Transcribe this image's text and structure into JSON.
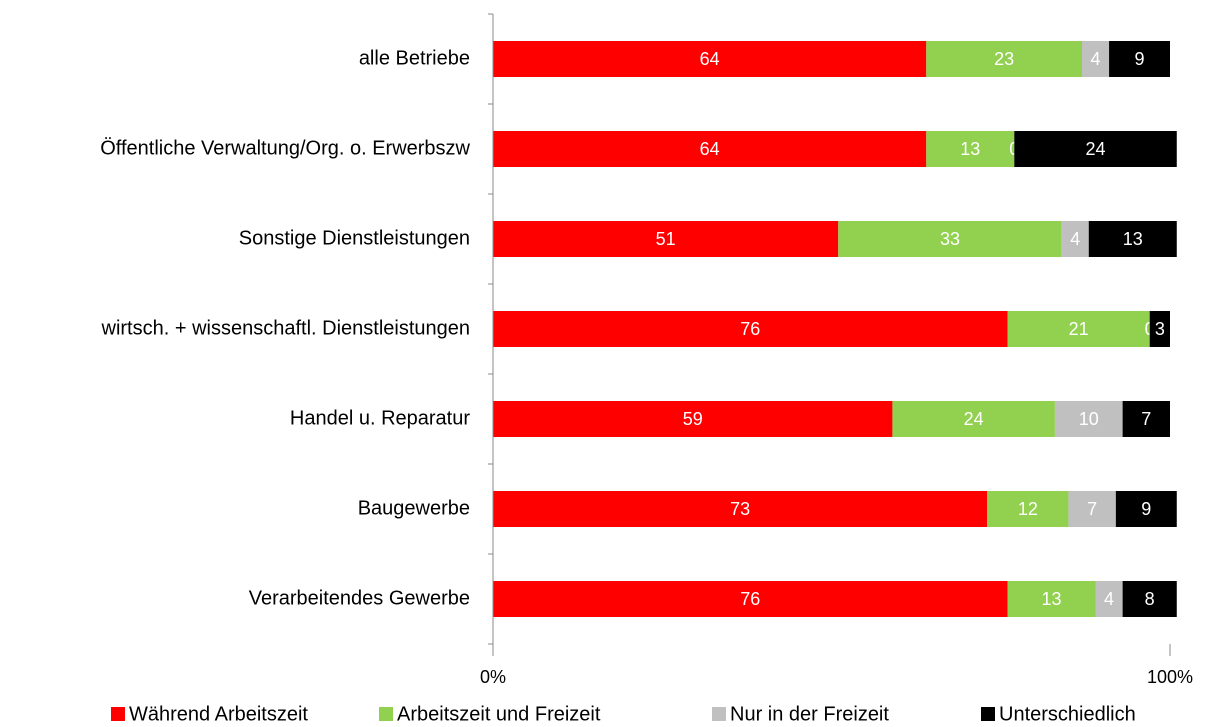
{
  "chart_data": {
    "type": "stacked_barh",
    "categories": [
      "alle Betriebe",
      "Öffentliche Verwaltung/Org. o. Erwerbszw",
      "Sonstige Dienstleistungen",
      "wirtsch. + wissenschaftl. Dienstleistungen",
      "Handel u. Reparatur",
      "Baugewerbe",
      "Verarbeitendes Gewerbe"
    ],
    "series": [
      {
        "name": "Während Arbeitszeit",
        "color": "#ff0000",
        "values": [
          64,
          64,
          51,
          76,
          59,
          73,
          76
        ]
      },
      {
        "name": "Arbeitszeit und Freizeit",
        "color": "#92d050",
        "values": [
          23,
          13,
          33,
          21,
          24,
          12,
          13
        ]
      },
      {
        "name": "Nur in der Freizeit",
        "color": "#c0c0c0",
        "values": [
          4,
          0,
          4,
          0,
          10,
          7,
          4
        ]
      },
      {
        "name": "Unterschiedlich",
        "color": "#000000",
        "values": [
          9,
          24,
          13,
          3,
          7,
          9,
          8
        ]
      }
    ],
    "xlim": [
      0,
      100
    ],
    "xticks": [
      {
        "value": 0,
        "label": "0%"
      },
      {
        "value": 100,
        "label": "100%"
      }
    ],
    "legend": "bottom"
  }
}
